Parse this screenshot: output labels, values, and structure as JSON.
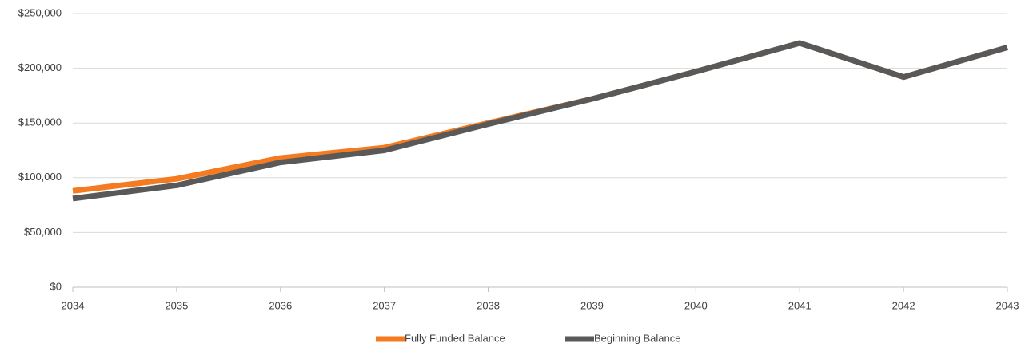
{
  "chart_data": {
    "type": "line",
    "categories": [
      "2034",
      "2035",
      "2036",
      "2037",
      "2038",
      "2039",
      "2040",
      "2041",
      "2042",
      "2043"
    ],
    "series": [
      {
        "name": "Fully Funded Balance",
        "color": "#f47b20",
        "values": [
          88000,
          99000,
          118000,
          127500,
          150000,
          172000,
          197000,
          223000,
          192000,
          219000
        ]
      },
      {
        "name": "Beginning Balance",
        "color": "#595959",
        "values": [
          81000,
          93000,
          114000,
          125000,
          149000,
          172000,
          197000,
          223000,
          192000,
          219000
        ]
      }
    ],
    "ylim": [
      0,
      250000
    ],
    "yticks": [
      {
        "value": 0,
        "label": "$0"
      },
      {
        "value": 50000,
        "label": "$50,000"
      },
      {
        "value": 100000,
        "label": "$100,000"
      },
      {
        "value": 150000,
        "label": "$150,000"
      },
      {
        "value": 200000,
        "label": "$200,000"
      },
      {
        "value": 250000,
        "label": "$250,000"
      }
    ],
    "grid": true,
    "legend": "bottom"
  }
}
